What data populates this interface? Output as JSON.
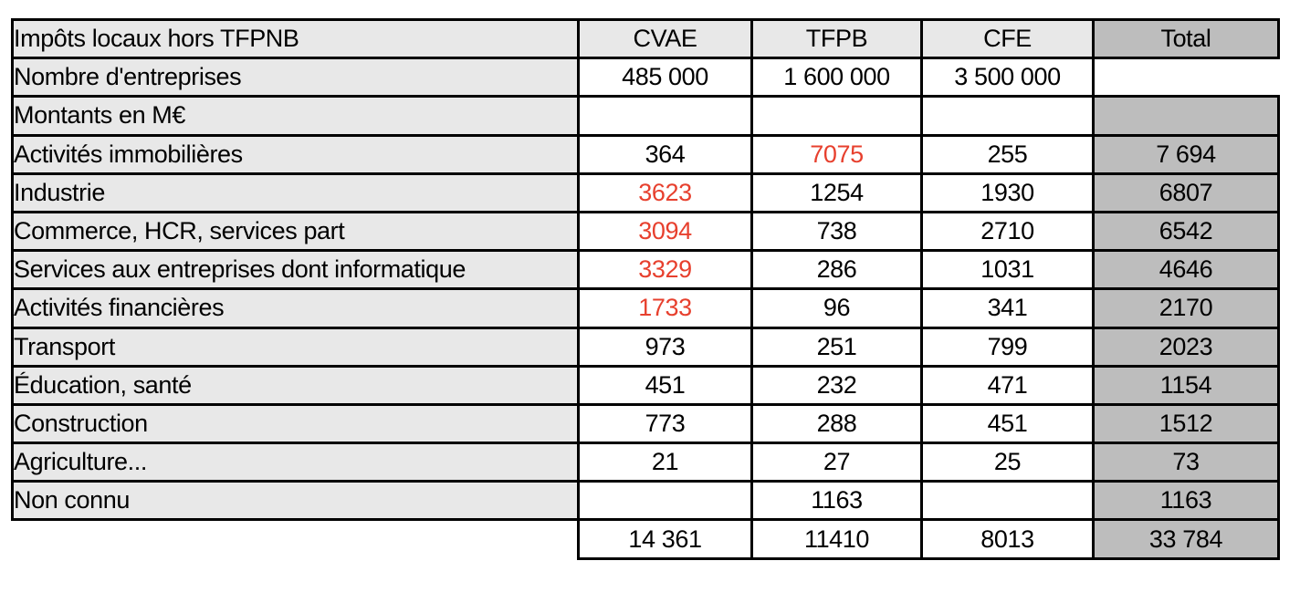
{
  "colors": {
    "label_bg": "#E8E8E8",
    "total_bg": "#BDBDBD",
    "data_bg": "#FFFFFF",
    "border_color": "#000000",
    "red_text": "#E7402E",
    "text_color": "#000000"
  },
  "table": {
    "header": {
      "label": "Impôts locaux hors TFPNB",
      "columns": [
        "CVAE",
        "TFPB",
        "CFE",
        "Total"
      ]
    },
    "rows": [
      {
        "label": "Nombre d'entreprises",
        "values": [
          "485 000",
          "1 600 000",
          "3 500 000"
        ],
        "red": [
          false,
          false,
          false
        ],
        "total": "",
        "total_open": true
      },
      {
        "label": "Montants en M€",
        "values": [
          "",
          "",
          ""
        ],
        "red": [
          false,
          false,
          false
        ],
        "total": "",
        "total_open": false
      },
      {
        "label": "Activités immobilières",
        "values": [
          "364",
          "7075",
          "255"
        ],
        "red": [
          false,
          true,
          false
        ],
        "total": "7 694",
        "total_open": false
      },
      {
        "label": "Industrie",
        "values": [
          "3623",
          "1254",
          "1930"
        ],
        "red": [
          true,
          false,
          false
        ],
        "total": "6807",
        "total_open": false
      },
      {
        "label": "Commerce, HCR, services part",
        "values": [
          "3094",
          "738",
          "2710"
        ],
        "red": [
          true,
          false,
          false
        ],
        "total": "6542",
        "total_open": false
      },
      {
        "label": "Services aux entreprises dont informatique",
        "values": [
          "3329",
          "286",
          "1031"
        ],
        "red": [
          true,
          false,
          false
        ],
        "total": "4646",
        "total_open": false
      },
      {
        "label": "Activités financières",
        "values": [
          "1733",
          "96",
          "341"
        ],
        "red": [
          true,
          false,
          false
        ],
        "total": "2170",
        "total_open": false
      },
      {
        "label": "Transport",
        "values": [
          "973",
          "251",
          "799"
        ],
        "red": [
          false,
          false,
          false
        ],
        "total": "2023",
        "total_open": false
      },
      {
        "label": "Éducation, santé",
        "values": [
          "451",
          "232",
          "471"
        ],
        "red": [
          false,
          false,
          false
        ],
        "total": "1154",
        "total_open": false
      },
      {
        "label": "Construction",
        "values": [
          "773",
          "288",
          "451"
        ],
        "red": [
          false,
          false,
          false
        ],
        "total": "1512",
        "total_open": false
      },
      {
        "label": "Agriculture...",
        "values": [
          "21",
          "27",
          "25"
        ],
        "red": [
          false,
          false,
          false
        ],
        "total": "73",
        "total_open": false
      },
      {
        "label": "Non connu",
        "values": [
          "",
          "1163",
          ""
        ],
        "red": [
          false,
          false,
          false
        ],
        "total": "1163",
        "total_open": false
      }
    ],
    "footer": {
      "values": [
        "14 361",
        "11410",
        "8013"
      ],
      "total": "33 784"
    }
  },
  "chart_data": {
    "type": "table",
    "title": "Impôts locaux hors TFPNB",
    "units_note": "Montants en M€",
    "columns": [
      "CVAE",
      "TFPB",
      "CFE",
      "Total"
    ],
    "nombre_entreprises": {
      "CVAE": 485000,
      "TFPB": 1600000,
      "CFE": 3500000
    },
    "sectors": [
      {
        "label": "Activités immobilières",
        "CVAE": 364,
        "TFPB": 7075,
        "CFE": 255,
        "Total": 7694
      },
      {
        "label": "Industrie",
        "CVAE": 3623,
        "TFPB": 1254,
        "CFE": 1930,
        "Total": 6807
      },
      {
        "label": "Commerce, HCR, services part",
        "CVAE": 3094,
        "TFPB": 738,
        "CFE": 2710,
        "Total": 6542
      },
      {
        "label": "Services aux entreprises dont informatique",
        "CVAE": 3329,
        "TFPB": 286,
        "CFE": 1031,
        "Total": 4646
      },
      {
        "label": "Activités financières",
        "CVAE": 1733,
        "TFPB": 96,
        "CFE": 341,
        "Total": 2170
      },
      {
        "label": "Transport",
        "CVAE": 973,
        "TFPB": 251,
        "CFE": 799,
        "Total": 2023
      },
      {
        "label": "Éducation, santé",
        "CVAE": 451,
        "TFPB": 232,
        "CFE": 471,
        "Total": 1154
      },
      {
        "label": "Construction",
        "CVAE": 773,
        "TFPB": 288,
        "CFE": 451,
        "Total": 1512
      },
      {
        "label": "Agriculture...",
        "CVAE": 21,
        "TFPB": 27,
        "CFE": 25,
        "Total": 73
      },
      {
        "label": "Non connu",
        "CVAE": null,
        "TFPB": 1163,
        "CFE": null,
        "Total": 1163
      }
    ],
    "column_totals": {
      "CVAE": 14361,
      "TFPB": 11410,
      "CFE": 8013,
      "Total": 33784
    },
    "red_highlighted_cells": [
      [
        "Activités immobilières",
        "TFPB"
      ],
      [
        "Industrie",
        "CVAE"
      ],
      [
        "Commerce, HCR, services part",
        "CVAE"
      ],
      [
        "Services aux entreprises dont informatique",
        "CVAE"
      ],
      [
        "Activités financières",
        "CVAE"
      ]
    ]
  }
}
